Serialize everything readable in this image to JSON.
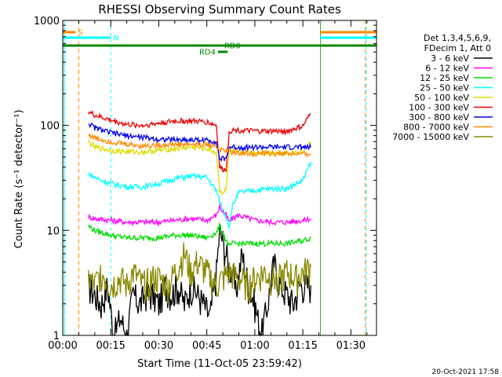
{
  "chart_data": {
    "type": "line",
    "title": "RHESSI Observing Summary Count Rates",
    "xlabel": "Start Time (11-Oct-05 23:59:42)",
    "ylabel": "Count Rate (s⁻¹ detector⁻¹)",
    "y_scale": "log",
    "ylim": [
      1,
      1000
    ],
    "xlim": [
      0,
      98
    ],
    "x_unit": "minutes",
    "x_ticks": [
      {
        "value": 0,
        "label": "00:00"
      },
      {
        "value": 15,
        "label": "00:15"
      },
      {
        "value": 30,
        "label": "00:30"
      },
      {
        "value": 45,
        "label": "00:45"
      },
      {
        "value": 60,
        "label": "01:00"
      },
      {
        "value": 75,
        "label": "01:15"
      },
      {
        "value": 90,
        "label": "01:30"
      }
    ],
    "y_ticks": [
      {
        "value": 1,
        "label": "1"
      },
      {
        "value": 10,
        "label": "10"
      },
      {
        "value": 100,
        "label": "100"
      },
      {
        "value": 1000,
        "label": "1000"
      }
    ],
    "legend_header": [
      "Det 1,3,4,5,6,9,",
      "FDecim 1, Att 0"
    ],
    "legend_placement": "right",
    "series": [
      {
        "name": "3 - 6 keV",
        "color": "#000000",
        "x": [
          8,
          10,
          12,
          14,
          16,
          18,
          20,
          22,
          24,
          26,
          28,
          30,
          32,
          34,
          36,
          38,
          40,
          42,
          44,
          46,
          48,
          49,
          50,
          51,
          52,
          53,
          54,
          56,
          58,
          60,
          62,
          64,
          66,
          68,
          70,
          72,
          74,
          76,
          77.5
        ],
        "y": [
          3,
          2.5,
          2,
          3,
          1,
          1.5,
          1,
          2.5,
          2,
          2.5,
          2.5,
          2,
          3,
          2.5,
          3,
          2,
          3,
          2.5,
          2,
          1.5,
          4,
          10,
          8,
          6,
          4.5,
          4,
          2.5,
          6,
          3,
          2,
          1,
          2,
          5,
          3,
          2.5,
          2,
          3,
          3,
          3
        ]
      },
      {
        "name": "6 - 12 keV",
        "color": "#ff00ff",
        "x": [
          8,
          10,
          15,
          20,
          25,
          30,
          35,
          40,
          45,
          48,
          49,
          50,
          51,
          52,
          53,
          55,
          60,
          65,
          70,
          75,
          77.5
        ],
        "y": [
          13.5,
          13,
          12.5,
          12,
          12,
          12,
          12.5,
          13,
          12.5,
          14,
          17,
          15,
          14,
          12,
          13,
          14,
          12.5,
          12,
          12,
          12.5,
          13
        ]
      },
      {
        "name": "12 - 25 keV",
        "color": "#00dd00",
        "x": [
          8,
          10,
          15,
          20,
          25,
          30,
          35,
          40,
          45,
          48,
          49,
          50,
          51,
          52,
          53,
          55,
          60,
          65,
          70,
          75,
          77.5
        ],
        "y": [
          11,
          10,
          9,
          8.5,
          8.5,
          8.5,
          9,
          9,
          8.5,
          9.5,
          11,
          9.5,
          8,
          7,
          7.5,
          7.5,
          7.5,
          7.5,
          7.5,
          8,
          8.5
        ]
      },
      {
        "name": "25 - 50 keV",
        "color": "#00ffff",
        "x": [
          8,
          10,
          12,
          15,
          20,
          25,
          30,
          35,
          40,
          45,
          48,
          49,
          50,
          51,
          52,
          53,
          55,
          60,
          65,
          70,
          75,
          77.5
        ],
        "y": [
          35,
          32,
          30,
          28,
          26,
          26,
          28,
          31,
          33,
          32,
          24,
          19,
          16,
          13.5,
          11,
          17,
          23,
          24,
          25,
          25,
          30,
          45
        ]
      },
      {
        "name": "50 - 100 keV",
        "color": "#dddd00",
        "x": [
          8,
          10,
          15,
          20,
          25,
          30,
          35,
          40,
          45,
          48,
          49,
          50,
          51,
          52,
          53,
          55,
          60,
          65,
          70,
          75,
          77.5
        ],
        "y": [
          70,
          62,
          58,
          56,
          56,
          58,
          60,
          62,
          60,
          55,
          24,
          23,
          24,
          56,
          56,
          55,
          55,
          55,
          55,
          56,
          70
        ]
      },
      {
        "name": "100 - 300 keV",
        "color": "#ee0000",
        "x": [
          8,
          10,
          15,
          20,
          25,
          30,
          35,
          40,
          45,
          48,
          49,
          50,
          51,
          52,
          53,
          55,
          60,
          65,
          70,
          75,
          77.5
        ],
        "y": [
          135,
          125,
          112,
          102,
          100,
          105,
          110,
          110,
          108,
          100,
          40,
          38,
          38,
          88,
          90,
          90,
          88,
          88,
          88,
          98,
          130
        ]
      },
      {
        "name": "300 - 800 keV",
        "color": "#0000ee",
        "x": [
          8,
          10,
          15,
          20,
          25,
          30,
          35,
          40,
          45,
          48,
          49,
          50,
          51,
          52,
          53,
          55,
          60,
          65,
          70,
          75,
          77.5
        ],
        "y": [
          105,
          95,
          85,
          80,
          77,
          74,
          73,
          73,
          72,
          70,
          48,
          48,
          48,
          62,
          62,
          62,
          62,
          62,
          62,
          62,
          62
        ]
      },
      {
        "name": "800 - 7000 keV",
        "color": "#ff8800",
        "x": [
          8,
          10,
          15,
          20,
          25,
          30,
          35,
          40,
          45,
          48,
          49,
          50,
          51,
          52,
          53,
          55,
          60,
          65,
          70,
          75,
          77.5
        ],
        "y": [
          82,
          76,
          70,
          66,
          64,
          65,
          66,
          66,
          66,
          63,
          58,
          58,
          58,
          57,
          55,
          55,
          54,
          54,
          54,
          53,
          54
        ]
      },
      {
        "name": "7000 - 15000 keV",
        "color": "#888800",
        "x": [
          8,
          10,
          12,
          15,
          18,
          20,
          22,
          25,
          28,
          30,
          33,
          35,
          38,
          40,
          42,
          45,
          48,
          50,
          52,
          55,
          58,
          60,
          63,
          65,
          68,
          70,
          73,
          75,
          77.5
        ],
        "y": [
          3.5,
          3,
          4,
          3,
          3.5,
          3,
          4,
          3,
          3.5,
          3.5,
          3,
          4,
          6,
          4,
          5,
          4,
          3,
          3.5,
          4,
          3.5,
          3,
          3.5,
          4,
          3.5,
          3.5,
          4,
          3.5,
          4,
          4.5
        ]
      }
    ],
    "annotations": [
      {
        "label": "S",
        "color": "#ff8800",
        "x_start": 0,
        "x_end": 4
      },
      {
        "label": "N",
        "color": "#00ffff",
        "x_start": 0,
        "x_end": 15
      },
      {
        "label": "RD0",
        "color": "#008800",
        "x_start": 0,
        "x_end": 98
      },
      {
        "label": "RD4",
        "color": "#008800",
        "x_start": 48.5,
        "x_end": 51.5
      }
    ],
    "footer_date": "20-Oct-2021 17:58"
  }
}
